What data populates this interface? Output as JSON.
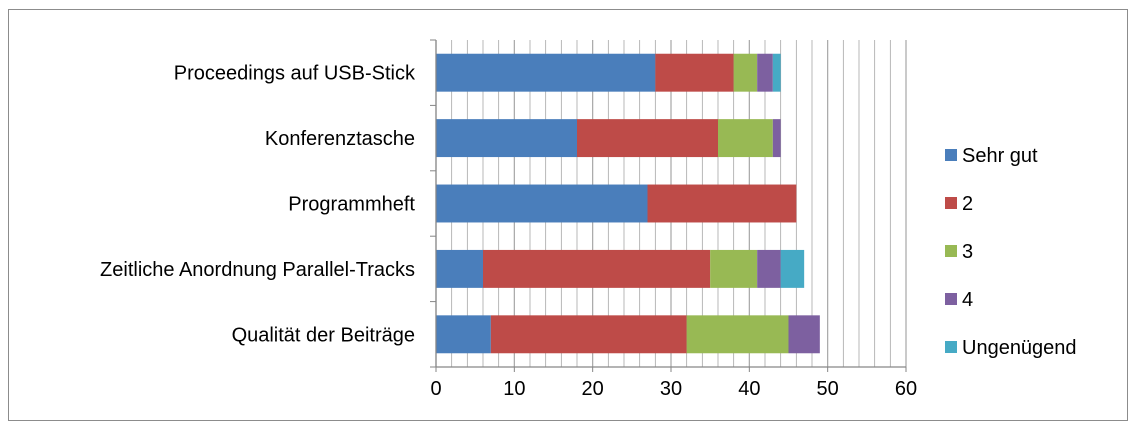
{
  "chart_data": {
    "type": "bar",
    "orientation": "horizontal",
    "stacked": true,
    "title": "",
    "xlabel": "",
    "ylabel": "",
    "categories": [
      "Proceedings auf USB-Stick",
      "Konferenztasche",
      "Programmheft",
      "Zeitliche Anordnung Parallel-Tracks",
      "Qualität der Beiträge"
    ],
    "series": [
      {
        "name": "Sehr gut",
        "color": "#4A7EBB",
        "values": [
          28,
          18,
          27,
          6,
          7
        ]
      },
      {
        "name": "2",
        "color": "#BE4B48",
        "values": [
          10,
          18,
          19,
          29,
          25
        ]
      },
      {
        "name": "3",
        "color": "#98B954",
        "values": [
          3,
          7,
          0,
          6,
          13
        ]
      },
      {
        "name": "4",
        "color": "#7D60A0",
        "values": [
          2,
          1,
          0,
          3,
          4
        ]
      },
      {
        "name": "Ungenügend",
        "color": "#46AAC5",
        "values": [
          1,
          0,
          0,
          3,
          0
        ]
      }
    ],
    "xlim": [
      0,
      60
    ],
    "xticks": [
      0,
      10,
      20,
      30,
      40,
      50,
      60
    ],
    "grid": "vertical",
    "legend": "right"
  }
}
